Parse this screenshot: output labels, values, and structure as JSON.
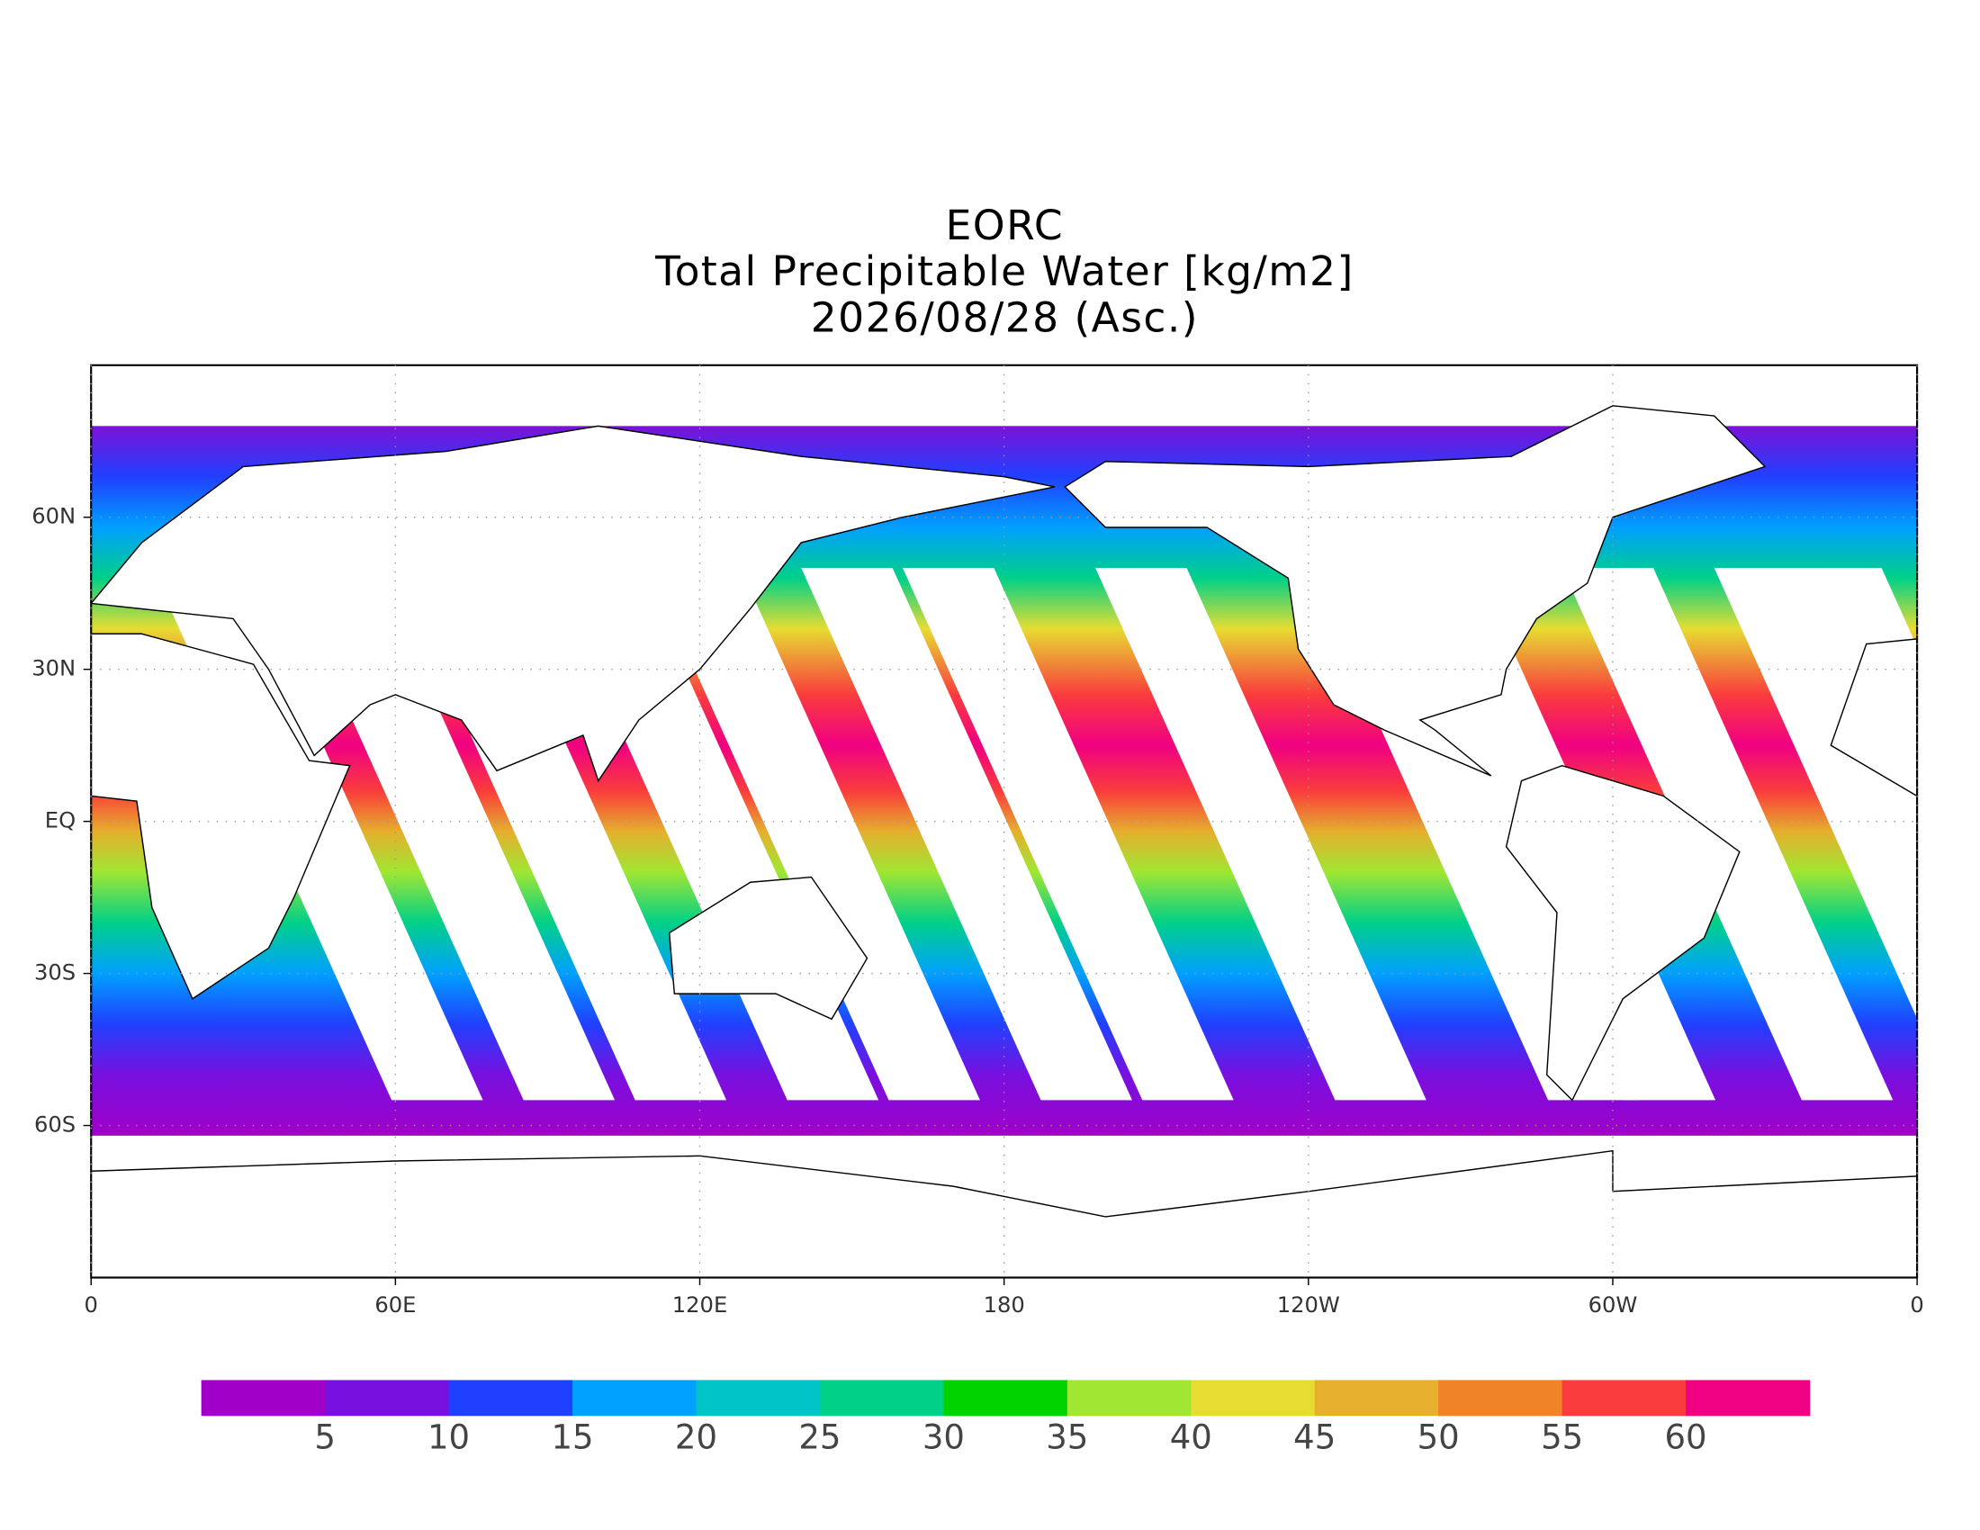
{
  "chart_data": {
    "type": "map",
    "title": [
      "EORC",
      "Total Precipitable Water [kg/m2]",
      "2026/08/28 (Asc.)"
    ],
    "xlim": [
      0,
      360
    ],
    "ylim": [
      -90,
      90
    ],
    "xticks": [
      0,
      {
        "value": 60,
        "label": "60E"
      },
      {
        "value": 120,
        "label": "120E"
      },
      180,
      {
        "value": 240,
        "label": "120W"
      },
      {
        "value": 300,
        "label": "60W"
      },
      {
        "value": 360,
        "label": "0"
      }
    ],
    "yticks": [
      {
        "value": 60,
        "label": "60N"
      },
      {
        "value": 30,
        "label": "30N"
      },
      {
        "value": 0,
        "label": "EQ"
      },
      {
        "value": -30,
        "label": "30S"
      },
      {
        "value": -60,
        "label": "60S"
      }
    ],
    "grid": true,
    "colorbar": {
      "clim": [
        0,
        65
      ],
      "colors": [
        "#a000c8",
        "#7810e0",
        "#2040ff",
        "#00a0ff",
        "#00c4c8",
        "#00d088",
        "#00d200",
        "#a0e632",
        "#e6dc32",
        "#e6af2d",
        "#f08228",
        "#fa3c3c",
        "#f00082"
      ],
      "ticks": [
        5,
        10,
        15,
        20,
        25,
        30,
        35,
        40,
        45,
        50,
        55,
        60
      ]
    }
  }
}
